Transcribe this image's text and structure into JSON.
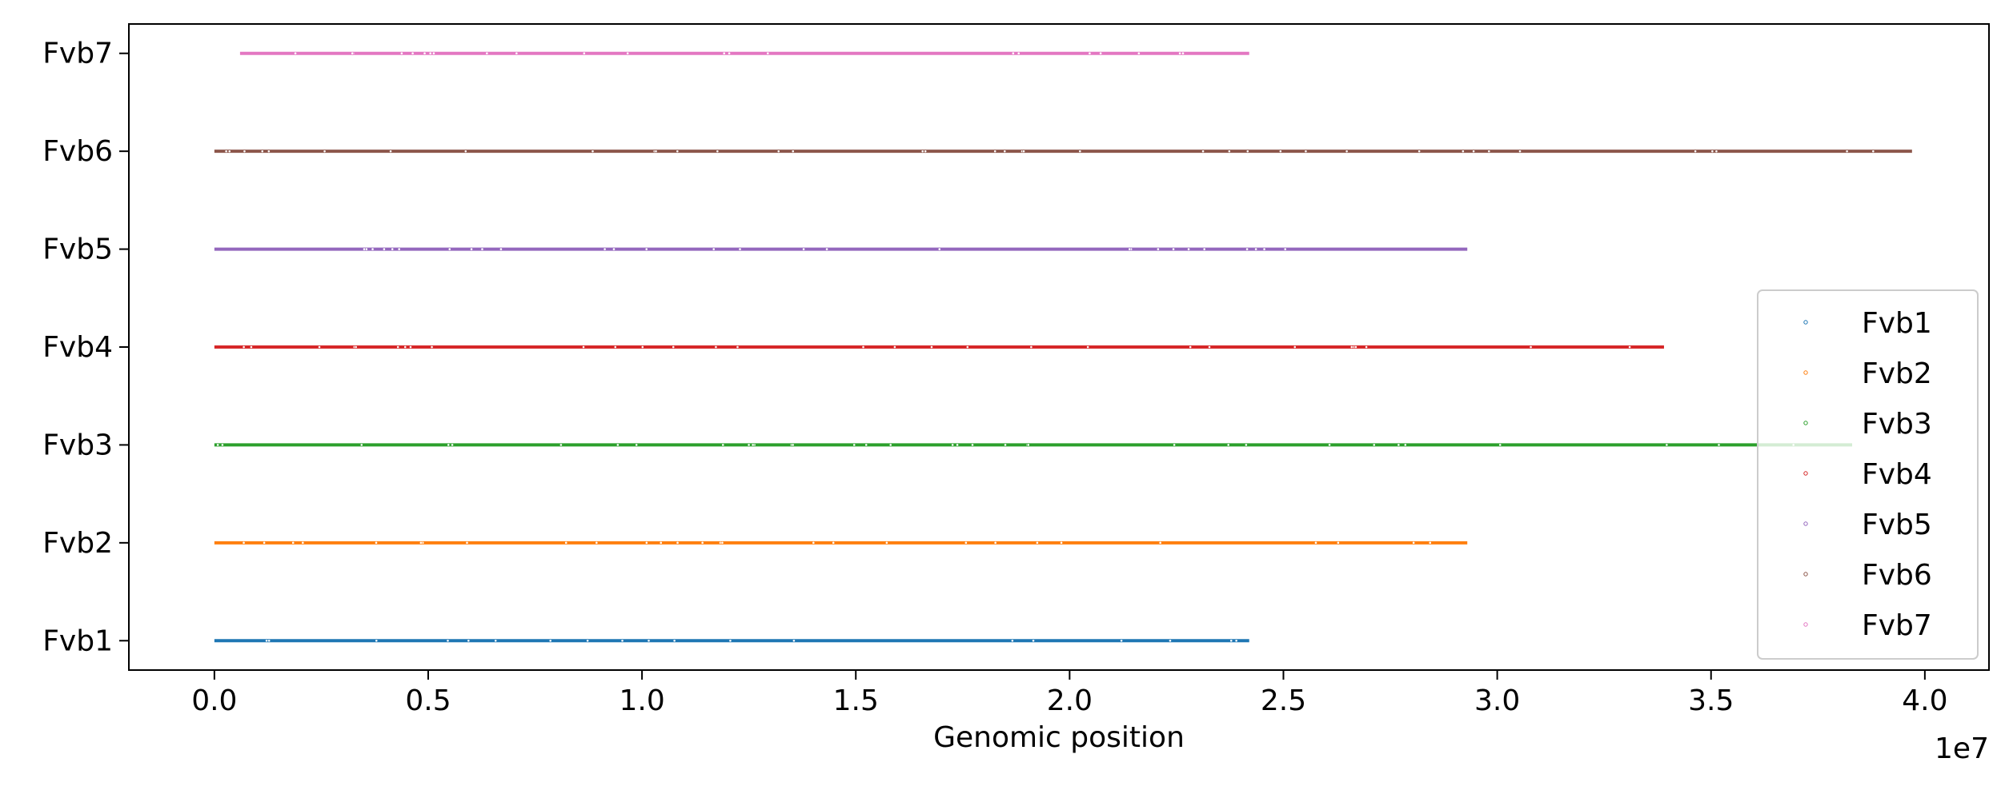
{
  "chart_data": {
    "type": "scatter",
    "title": "",
    "xlabel": "Genomic position",
    "ylabel": "",
    "x_offset_label": "1e7",
    "xlim": [
      -2000000,
      41500000
    ],
    "ylim": [
      0.7,
      7.3
    ],
    "xticks": [
      {
        "value": 0,
        "label": "0.0"
      },
      {
        "value": 5000000,
        "label": "0.5"
      },
      {
        "value": 10000000,
        "label": "1.0"
      },
      {
        "value": 15000000,
        "label": "1.5"
      },
      {
        "value": 20000000,
        "label": "2.0"
      },
      {
        "value": 25000000,
        "label": "2.5"
      },
      {
        "value": 30000000,
        "label": "3.0"
      },
      {
        "value": 35000000,
        "label": "3.5"
      },
      {
        "value": 40000000,
        "label": "4.0"
      }
    ],
    "grid": false,
    "legend_position": "lower-right",
    "series": [
      {
        "name": "Fvb1",
        "y": 1,
        "x_range": [
          0,
          24200000
        ],
        "color": "#1f77b4"
      },
      {
        "name": "Fvb2",
        "y": 2,
        "x_range": [
          0,
          29300000
        ],
        "color": "#ff7f0e"
      },
      {
        "name": "Fvb3",
        "y": 3,
        "x_range": [
          0,
          38300000
        ],
        "color": "#2ca02c"
      },
      {
        "name": "Fvb4",
        "y": 4,
        "x_range": [
          0,
          33900000
        ],
        "color": "#d62728"
      },
      {
        "name": "Fvb5",
        "y": 5,
        "x_range": [
          0,
          29300000
        ],
        "color": "#9467bd"
      },
      {
        "name": "Fvb6",
        "y": 6,
        "x_range": [
          0,
          39700000
        ],
        "color": "#8c564b"
      },
      {
        "name": "Fvb7",
        "y": 7,
        "x_range": [
          600000,
          24200000
        ],
        "color": "#e377c2"
      }
    ]
  }
}
